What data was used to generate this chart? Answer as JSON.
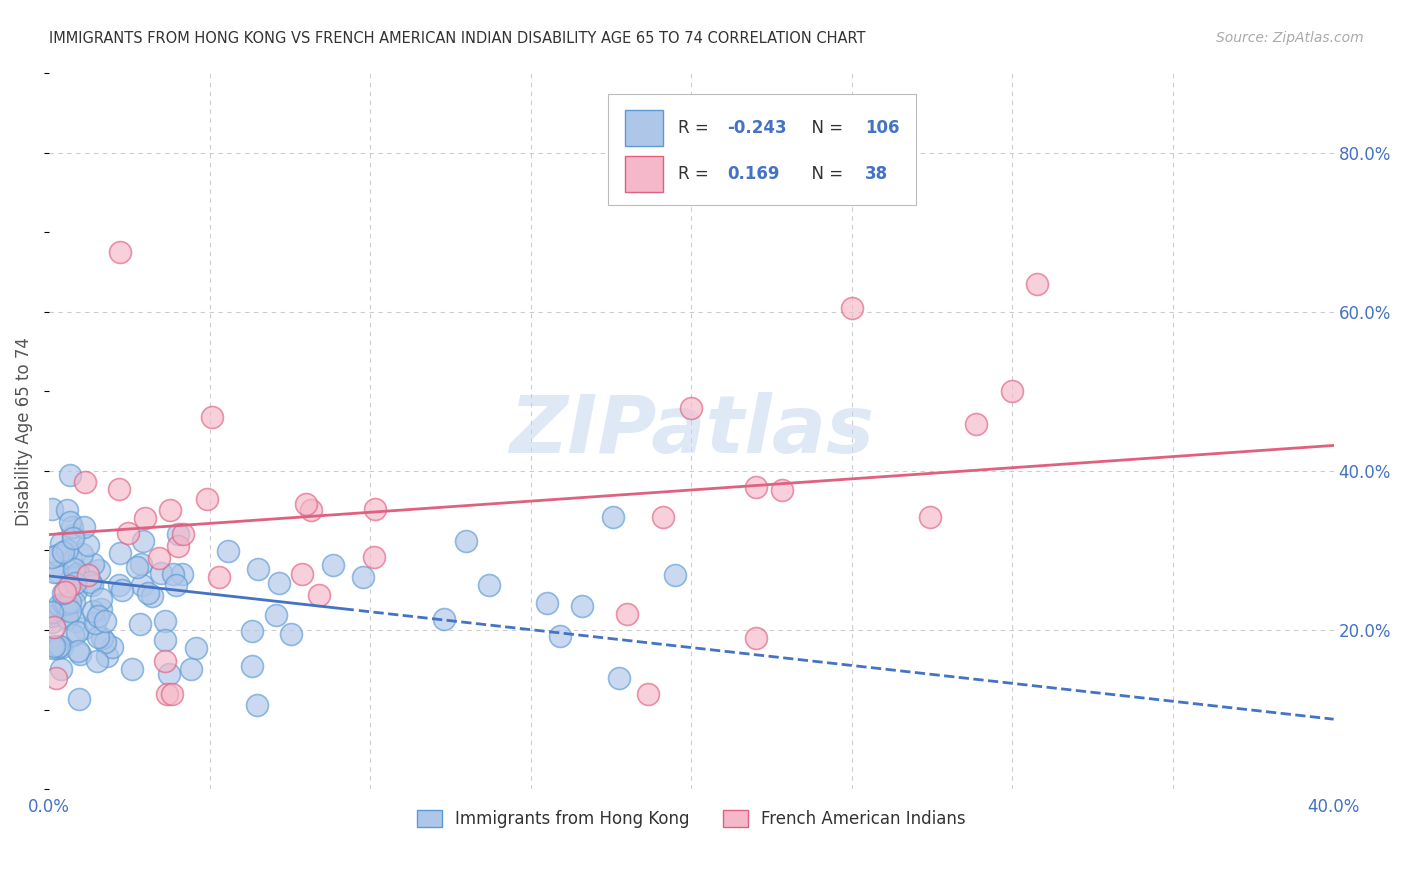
{
  "title": "IMMIGRANTS FROM HONG KONG VS FRENCH AMERICAN INDIAN DISABILITY AGE 65 TO 74 CORRELATION CHART",
  "source": "Source: ZipAtlas.com",
  "ylabel": "Disability Age 65 to 74",
  "xlim": [
    0.0,
    0.4
  ],
  "ylim": [
    0.0,
    0.9
  ],
  "hk_R": -0.243,
  "hk_N": 106,
  "fai_R": 0.169,
  "fai_N": 38,
  "hk_color": "#aec6e8",
  "hk_edge_color": "#5b9bd5",
  "fai_color": "#f4b8ca",
  "fai_edge_color": "#e06080",
  "hk_line_color": "#4472c4",
  "fai_line_color": "#e06080",
  "legend_R_color": "#333333",
  "legend_val_color": "#4472c4",
  "legend_neg_color": "#e05050",
  "watermark": "ZIPatlas",
  "watermark_color": "#c5d8ef",
  "background_color": "#ffffff",
  "grid_color": "#cccccc",
  "tick_color": "#4472c4",
  "title_color": "#333333",
  "source_color": "#aaaaaa",
  "ylabel_color": "#555555"
}
